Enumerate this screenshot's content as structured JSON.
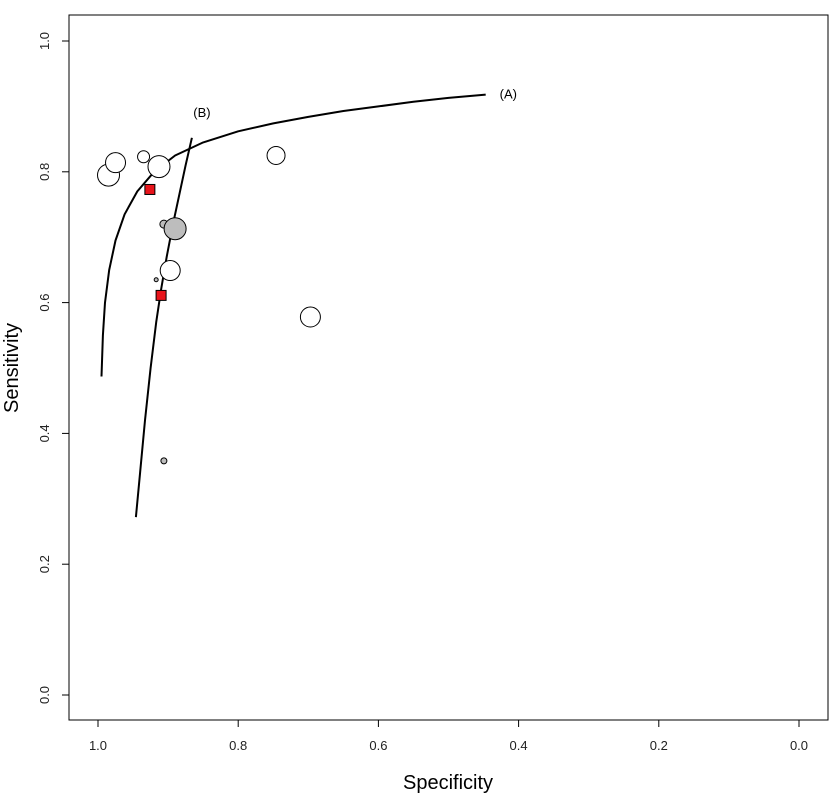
{
  "chart_data": {
    "type": "scatter",
    "title": "",
    "xlabel": "Specificity",
    "ylabel": "Sensitivity",
    "xlim": [
      1.0,
      0.0
    ],
    "ylim": [
      0.0,
      1.0
    ],
    "x_reversed": true,
    "x_ticks": [
      "1.0",
      "0.8",
      "0.6",
      "0.4",
      "0.2",
      "0.0"
    ],
    "y_ticks": [
      "0.0",
      "0.2",
      "0.4",
      "0.6",
      "0.8",
      "1.0"
    ],
    "grid": false,
    "legend": "none",
    "series": [
      {
        "marker": "open-circle",
        "color": "#ffffff",
        "stroke": "#000000",
        "points": [
          {
            "specificity": 0.985,
            "sensitivity": 0.795,
            "weight": 11
          },
          {
            "specificity": 0.975,
            "sensitivity": 0.814,
            "weight": 10
          },
          {
            "specificity": 0.935,
            "sensitivity": 0.823,
            "weight": 6
          },
          {
            "specificity": 0.913,
            "sensitivity": 0.808,
            "weight": 11
          },
          {
            "specificity": 0.897,
            "sensitivity": 0.649,
            "weight": 10
          },
          {
            "specificity": 0.746,
            "sensitivity": 0.825,
            "weight": 9
          },
          {
            "specificity": 0.697,
            "sensitivity": 0.578,
            "weight": 10
          }
        ]
      },
      {
        "marker": "filled-circle",
        "color": "#bdbdbd",
        "stroke": "#000000",
        "points": [
          {
            "specificity": 0.906,
            "sensitivity": 0.72,
            "weight": 4
          },
          {
            "specificity": 0.89,
            "sensitivity": 0.713,
            "weight": 11
          },
          {
            "specificity": 0.917,
            "sensitivity": 0.635,
            "weight": 2
          },
          {
            "specificity": 0.906,
            "sensitivity": 0.358,
            "weight": 3
          }
        ]
      },
      {
        "marker": "square",
        "color": "#e8141b",
        "stroke": "#000000",
        "points": [
          {
            "specificity": 0.926,
            "sensitivity": 0.773
          },
          {
            "specificity": 0.91,
            "sensitivity": 0.611
          }
        ]
      }
    ],
    "curves": [
      {
        "label": "(A)",
        "points": [
          [
            0.995,
            0.487
          ],
          [
            0.993,
            0.55
          ],
          [
            0.99,
            0.6
          ],
          [
            0.984,
            0.65
          ],
          [
            0.975,
            0.695
          ],
          [
            0.962,
            0.735
          ],
          [
            0.944,
            0.77
          ],
          [
            0.92,
            0.8
          ],
          [
            0.89,
            0.825
          ],
          [
            0.85,
            0.845
          ],
          [
            0.8,
            0.862
          ],
          [
            0.75,
            0.874
          ],
          [
            0.7,
            0.884
          ],
          [
            0.65,
            0.893
          ],
          [
            0.6,
            0.9
          ],
          [
            0.55,
            0.907
          ],
          [
            0.5,
            0.913
          ],
          [
            0.447,
            0.918
          ]
        ]
      },
      {
        "label": "(B)",
        "points": [
          [
            0.946,
            0.272
          ],
          [
            0.94,
            0.34
          ],
          [
            0.933,
            0.42
          ],
          [
            0.925,
            0.5
          ],
          [
            0.917,
            0.57
          ],
          [
            0.91,
            0.62
          ],
          [
            0.902,
            0.67
          ],
          [
            0.893,
            0.72
          ],
          [
            0.884,
            0.765
          ],
          [
            0.875,
            0.81
          ],
          [
            0.866,
            0.852
          ]
        ]
      }
    ]
  }
}
